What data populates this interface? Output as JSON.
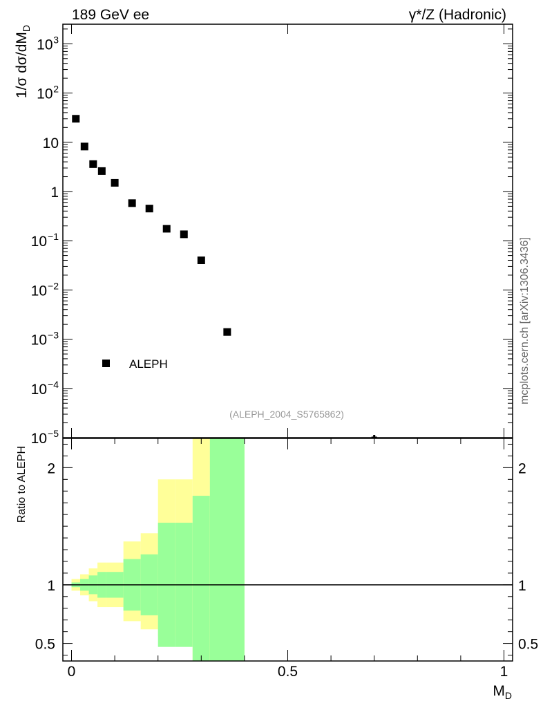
{
  "header": {
    "left": "189 GeV ee",
    "right": "γ*/Z (Hadronic)"
  },
  "side_note": "mcplots.cern.ch [arXiv:1306.3436]",
  "watermark": "(ALEPH_2004_S5765862)",
  "colors": {
    "band_outer": "#ffff99",
    "band_inner": "#99ff99",
    "marker": "#000000"
  },
  "chart_data": [
    {
      "type": "scatter",
      "ylabel": "1/σ dσ/dM_D",
      "yscale": "log",
      "ylim": [
        1e-05,
        2500
      ],
      "xlim": [
        -0.02,
        1.02
      ],
      "legend": {
        "label": "ALEPH",
        "position": "bottom-left"
      },
      "y_ticks": [
        {
          "v": 1000,
          "t": "10",
          "sup": "3"
        },
        {
          "v": 100,
          "t": "10",
          "sup": "2"
        },
        {
          "v": 10,
          "t": "10",
          "sup": ""
        },
        {
          "v": 1,
          "t": "1",
          "sup": ""
        },
        {
          "v": 0.1,
          "t": "10",
          "sup": "−1"
        },
        {
          "v": 0.01,
          "t": "10",
          "sup": "−2"
        },
        {
          "v": 0.001,
          "t": "10",
          "sup": "−3"
        },
        {
          "v": 0.0001,
          "t": "10",
          "sup": "−4"
        },
        {
          "v": 1e-05,
          "t": "10",
          "sup": "−5"
        }
      ],
      "series": [
        {
          "name": "ALEPH",
          "x": [
            0.01,
            0.03,
            0.05,
            0.07,
            0.1,
            0.14,
            0.18,
            0.22,
            0.26,
            0.3,
            0.36,
            0.7
          ],
          "y": [
            30,
            8.2,
            3.6,
            2.6,
            1.5,
            0.58,
            0.45,
            0.175,
            0.135,
            0.04,
            0.0014,
            8.8e-06
          ]
        }
      ]
    },
    {
      "type": "area",
      "ylabel": "Ratio to ALEPH",
      "xlabel": "M_D",
      "xlim": [
        -0.02,
        1.02
      ],
      "ylim": [
        0.35,
        2.25
      ],
      "x_ticks": [
        0,
        0.5,
        1
      ],
      "x_tick_labels": [
        "0",
        "0.5",
        "1"
      ],
      "y_ticks": [
        0.5,
        1,
        2
      ],
      "y_tick_labels": [
        "0.5",
        "1",
        "2"
      ],
      "reference_line": 1,
      "bins": [
        0,
        0.02,
        0.04,
        0.06,
        0.08,
        0.12,
        0.16,
        0.2,
        0.24,
        0.28,
        0.32,
        0.4
      ],
      "outer_band": {
        "upper": [
          1.05,
          1.09,
          1.14,
          1.19,
          1.19,
          1.37,
          1.44,
          1.9,
          1.9,
          2.25,
          2.25
        ],
        "lower": [
          0.95,
          0.91,
          0.86,
          0.81,
          0.81,
          0.69,
          0.62,
          0.56,
          0.56,
          0.35,
          0.35
        ]
      },
      "inner_band": {
        "upper": [
          1.02,
          1.05,
          1.08,
          1.11,
          1.11,
          1.22,
          1.26,
          1.53,
          1.53,
          1.76,
          2.25
        ]
      }
    }
  ]
}
